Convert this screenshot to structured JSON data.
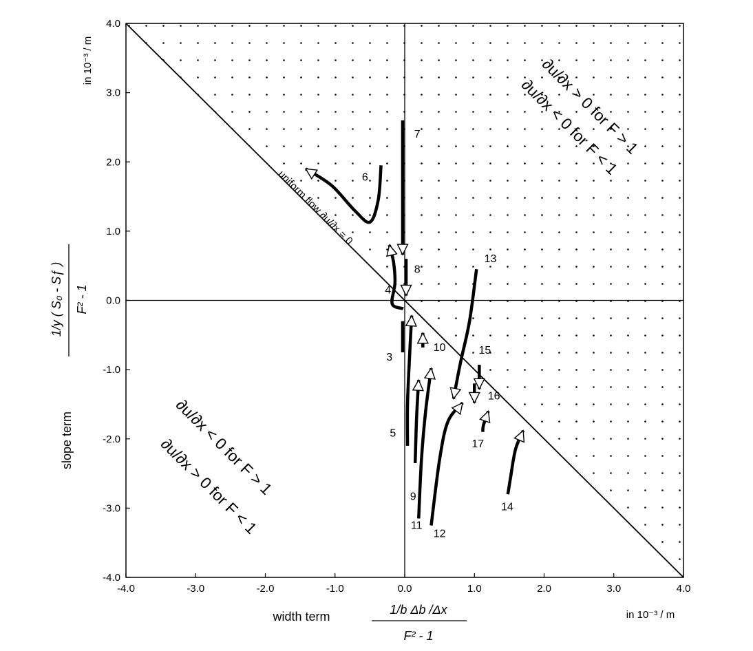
{
  "chart_data": {
    "type": "line",
    "xlim": [
      -4.0,
      4.0
    ],
    "ylim": [
      -4.0,
      4.0
    ],
    "x_ticks": [
      -4.0,
      -3.0,
      -2.0,
      -1.0,
      0.0,
      1.0,
      2.0,
      3.0,
      4.0
    ],
    "y_ticks": [
      -4.0,
      -3.0,
      -2.0,
      -1.0,
      0.0,
      1.0,
      2.0,
      3.0,
      4.0
    ],
    "x_tick_labels": [
      "-4.0",
      "-3.0",
      "-2.0",
      "-1.0",
      "0.0",
      "1.0",
      "2.0",
      "3.0",
      "4.0"
    ],
    "y_tick_labels": [
      "-4.0",
      "-3.0",
      "-2.0",
      "-1.0",
      "0.0",
      "1.0",
      "2.0",
      "3.0",
      "4.0"
    ],
    "xlabel": "width term",
    "xlabel_num": "1/b  Δb /Δx",
    "xlabel_den": "F² -  1",
    "xunit": "in 10⁻³ / m",
    "ylabel": "slope term",
    "ylabel_num": "1/y ( S₀ - Sƒ )",
    "ylabel_den": "F² - 1",
    "yunit": "in 10⁻³ / m",
    "diagonal_label": "uniform flow ∂u/∂x = 0",
    "region_upper": [
      "∂u/∂x  > 0 for F > 1",
      "∂u/∂x  < 0 for F < 1"
    ],
    "region_lower": [
      "∂u/∂x  < 0 for F > 1",
      "∂u/∂x  > 0 for F < 1"
    ],
    "stippled_region": "above diagonal",
    "series": [
      {
        "name": "3",
        "label_at": [
          -0.22,
          -0.87
        ],
        "arrow": "none",
        "points": [
          [
            -0.03,
            -0.75
          ],
          [
            -0.03,
            -0.3
          ]
        ]
      },
      {
        "name": "4",
        "label_at": [
          -0.24,
          0.1
        ],
        "arrow": "start",
        "points": [
          [
            -0.22,
            0.8
          ],
          [
            -0.16,
            0.55
          ],
          [
            -0.14,
            0.25
          ],
          [
            -0.18,
            -0.05
          ],
          [
            -0.02,
            -0.12
          ]
        ]
      },
      {
        "name": "5",
        "label_at": [
          -0.17,
          -1.97
        ],
        "arrow": "start",
        "points": [
          [
            0.1,
            -0.22
          ],
          [
            0.07,
            -0.8
          ],
          [
            0.04,
            -1.5
          ],
          [
            0.04,
            -2.1
          ]
        ]
      },
      {
        "name": "6",
        "label_at": [
          -0.57,
          1.73
        ],
        "arrow": "start",
        "points": [
          [
            -1.42,
            1.9
          ],
          [
            -1.05,
            1.66
          ],
          [
            -0.72,
            1.3
          ],
          [
            -0.5,
            1.13
          ],
          [
            -0.38,
            1.45
          ],
          [
            -0.34,
            1.95
          ]
        ]
      },
      {
        "name": "7",
        "label_at": [
          0.18,
          2.35
        ],
        "arrow": "end",
        "points": [
          [
            -0.03,
            2.6
          ],
          [
            -0.03,
            0.66
          ]
        ]
      },
      {
        "name": "8",
        "label_at": [
          0.18,
          0.4
        ],
        "arrow": "end",
        "points": [
          [
            0.02,
            0.6
          ],
          [
            0.02,
            0.07
          ]
        ]
      },
      {
        "name": "9",
        "label_at": [
          0.12,
          -2.88
        ],
        "arrow": "start",
        "points": [
          [
            0.2,
            -1.15
          ],
          [
            0.17,
            -1.7
          ],
          [
            0.15,
            -2.35
          ]
        ]
      },
      {
        "name": "10",
        "label_at": [
          0.5,
          -0.73
        ],
        "arrow": "start",
        "points": [
          [
            0.26,
            -0.47
          ],
          [
            0.26,
            -0.68
          ]
        ]
      },
      {
        "name": "11",
        "label_at": [
          0.17,
          -3.3
        ],
        "arrow": "start",
        "points": [
          [
            0.38,
            -0.98
          ],
          [
            0.3,
            -1.6
          ],
          [
            0.24,
            -2.3
          ],
          [
            0.2,
            -3.15
          ]
        ]
      },
      {
        "name": "12",
        "label_at": [
          0.5,
          -3.42
        ],
        "arrow": "start",
        "points": [
          [
            0.83,
            -1.48
          ],
          [
            0.62,
            -1.75
          ],
          [
            0.5,
            -2.3
          ],
          [
            0.38,
            -3.25
          ]
        ]
      },
      {
        "name": "13",
        "label_at": [
          1.23,
          0.55
        ],
        "arrow": "end",
        "points": [
          [
            1.03,
            0.45
          ],
          [
            0.93,
            -0.3
          ],
          [
            0.8,
            -0.9
          ],
          [
            0.7,
            -1.42
          ]
        ]
      },
      {
        "name": "14",
        "label_at": [
          1.47,
          -3.03
        ],
        "arrow": "start",
        "points": [
          [
            1.7,
            -1.88
          ],
          [
            1.59,
            -2.15
          ],
          [
            1.52,
            -2.55
          ],
          [
            1.48,
            -2.8
          ]
        ]
      },
      {
        "name": "15",
        "label_at": [
          1.15,
          -0.77
        ],
        "arrow": "end",
        "points": [
          [
            1.07,
            -0.93
          ],
          [
            1.07,
            -1.28
          ]
        ]
      },
      {
        "name": "16",
        "label_at": [
          1.28,
          -1.43
        ],
        "arrow": "end",
        "points": [
          [
            1.0,
            -1.2
          ],
          [
            1.0,
            -1.48
          ]
        ]
      },
      {
        "name": "17",
        "label_at": [
          1.05,
          -2.12
        ],
        "arrow": "start",
        "points": [
          [
            1.2,
            -1.6
          ],
          [
            1.13,
            -1.8
          ],
          [
            1.12,
            -1.9
          ]
        ]
      }
    ]
  }
}
